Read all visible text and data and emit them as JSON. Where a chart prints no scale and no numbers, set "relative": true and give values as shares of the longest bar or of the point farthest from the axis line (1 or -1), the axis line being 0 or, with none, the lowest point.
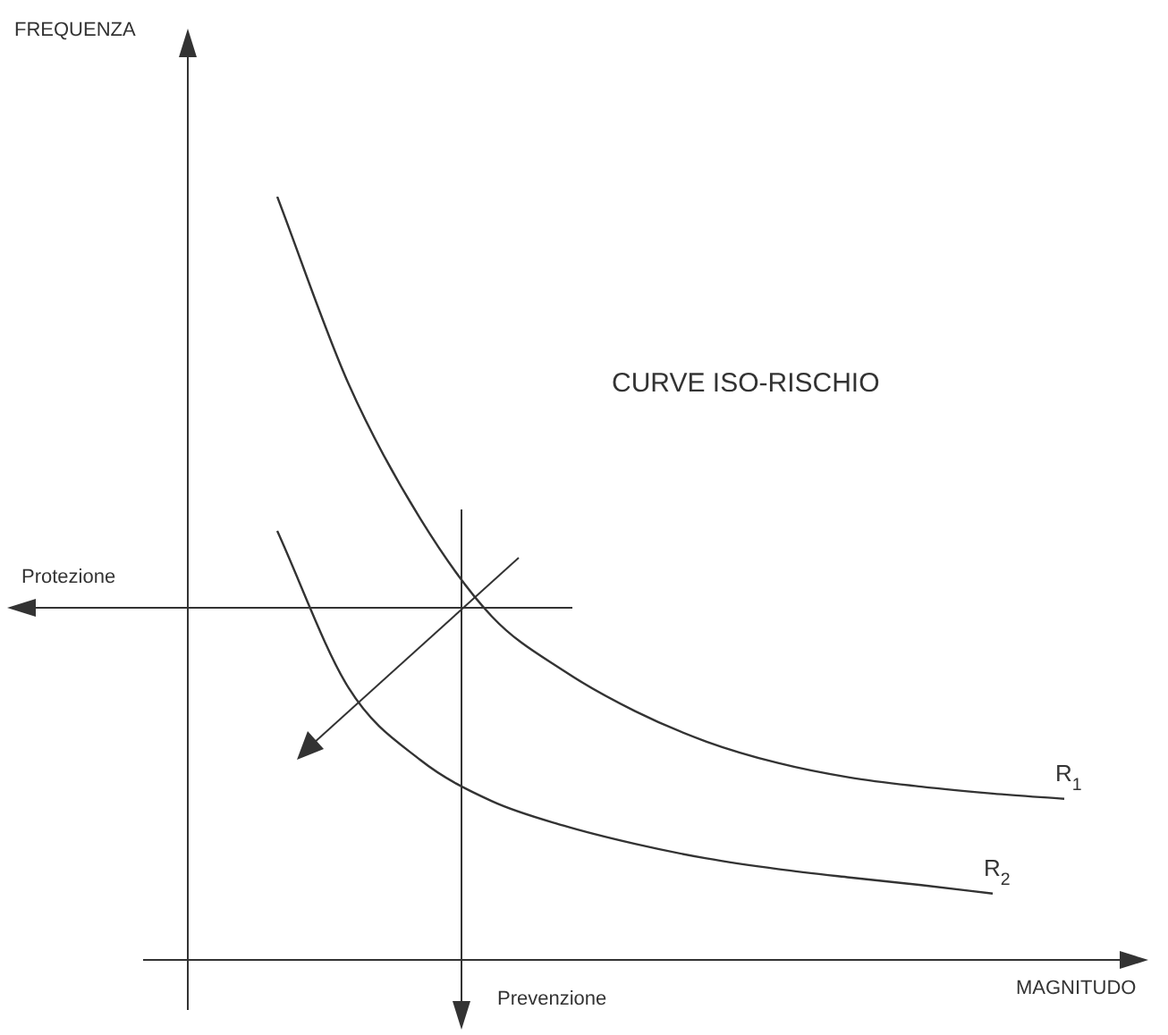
{
  "chart_data": {
    "type": "line",
    "title": "CURVE ISO-RISCHIO",
    "xlabel": "MAGNITUDO",
    "relative": true,
    "legend": false,
    "marker": "none",
    "categories": [
      null,
      null,
      null,
      null,
      null,
      null,
      null,
      null,
      null,
      null,
      null,
      null
    ],
    "series": [
      {
        "name": "R$_{1}$",
        "color": "#333333",
        "values": [
          1,
          0.754,
          0.578,
          0.45,
          0.379,
          0.326,
          0.286,
          0.258,
          0.239,
          0.227,
          0.218,
          0.211
        ]
      },
      {
        "name": "R$_{2}$",
        "color": "#333333",
        "values": [
          0.562,
          0.356,
          0.262,
          0.208,
          0.176,
          0.152,
          0.133,
          0.119,
          0.108,
          0.098,
          0.087,
          null
        ]
      }
    ],
    "annotations": [
      "Protezione",
      "Prevenzione",
      "FREQUENZA"
    ]
  }
}
